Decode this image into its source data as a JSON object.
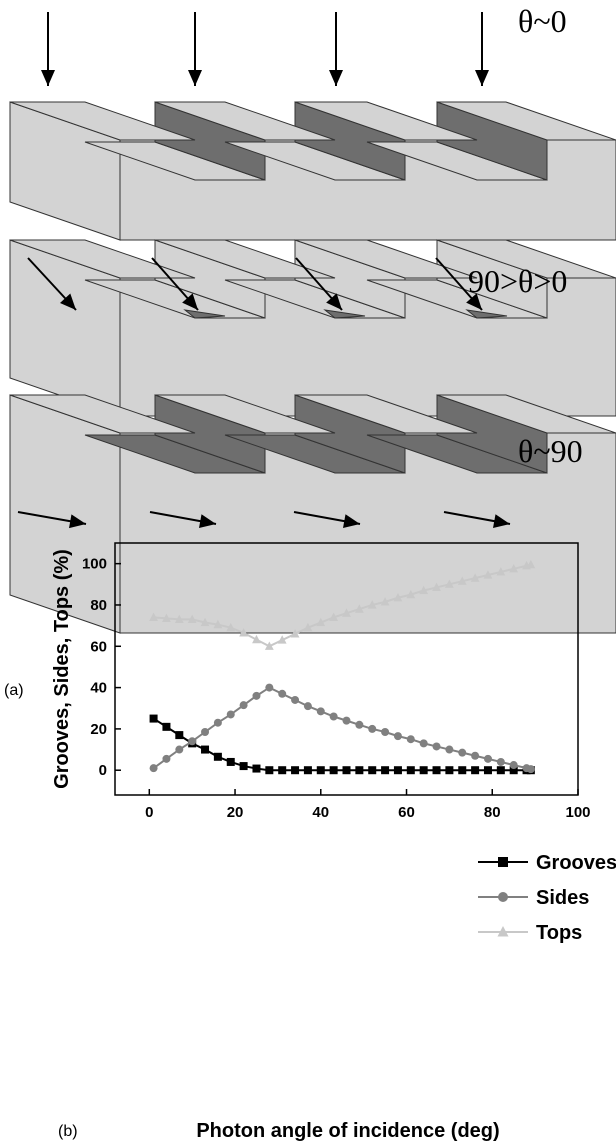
{
  "diagram": {
    "labels": [
      "θ~0",
      "90>θ>0",
      "θ~90"
    ],
    "panel_label": "(a)"
  },
  "chart_data": {
    "type": "line",
    "panel_label": "(b)",
    "xlabel": "Photon angle of incidence (deg)",
    "ylabel": "Grooves, Sides, Tops (%)",
    "x": [
      1,
      4,
      7,
      10,
      13,
      16,
      19,
      22,
      25,
      28,
      31,
      34,
      37,
      40,
      43,
      46,
      49,
      52,
      55,
      58,
      61,
      64,
      67,
      70,
      73,
      76,
      79,
      82,
      85,
      88,
      89
    ],
    "series": [
      {
        "name": "Grooves",
        "color": "#000000",
        "marker": "square",
        "values": [
          25,
          21,
          17,
          13,
          10,
          6.5,
          4,
          2,
          0.8,
          0,
          0,
          0,
          0,
          0,
          0,
          0,
          0,
          0,
          0,
          0,
          0,
          0,
          0,
          0,
          0,
          0,
          0,
          0,
          0,
          0,
          0
        ]
      },
      {
        "name": "Sides",
        "color": "#808080",
        "marker": "circle",
        "values": [
          1,
          5.5,
          10,
          14,
          18.5,
          23,
          27,
          31.5,
          36,
          40,
          37,
          34,
          31,
          28.5,
          26,
          24,
          22,
          20,
          18.5,
          16.5,
          15,
          13,
          11.5,
          10,
          8.5,
          7,
          5.5,
          4,
          2.5,
          1,
          0.5
        ]
      },
      {
        "name": "Tops",
        "color": "#c8c8c8",
        "marker": "triangle",
        "values": [
          74,
          73.5,
          73,
          73,
          71.5,
          70.5,
          69,
          66.5,
          63.2,
          60,
          63,
          66,
          69,
          71.5,
          74,
          76,
          78,
          80,
          81.5,
          83.5,
          85,
          87,
          88.5,
          90,
          91.5,
          93,
          94.5,
          96,
          97.5,
          99,
          99.5
        ]
      }
    ],
    "xlim": [
      -8,
      100
    ],
    "xticks": [
      0,
      20,
      40,
      60,
      80,
      100
    ],
    "ylim": [
      -12,
      110
    ],
    "yticks": [
      0,
      20,
      40,
      60,
      80,
      100
    ],
    "grid": false,
    "legend": "right"
  }
}
